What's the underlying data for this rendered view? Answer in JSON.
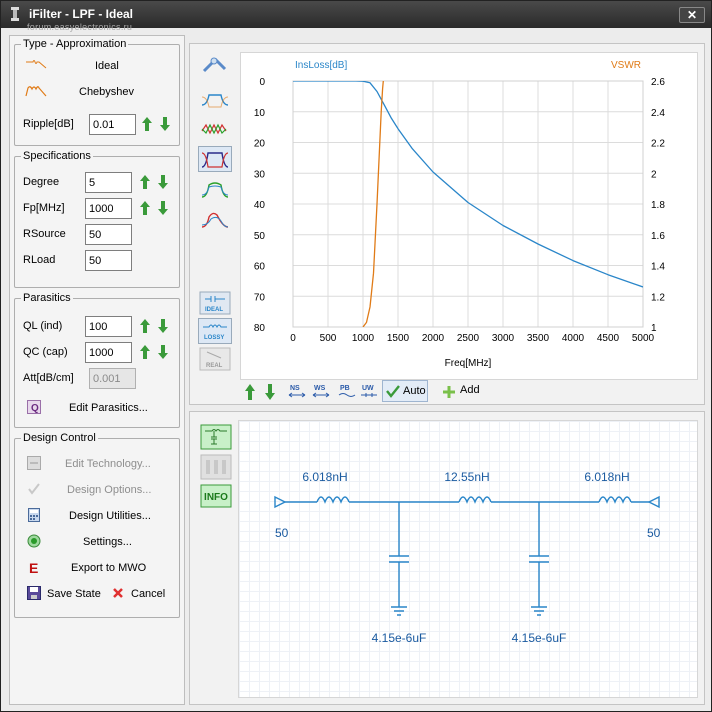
{
  "window": {
    "title": "iFilter - LPF - Ideal",
    "watermark": "forum.easyelectronics.ru",
    "close": "✕"
  },
  "type_approx": {
    "legend": "Type - Approximation",
    "ideal": "Ideal",
    "chebyshev": "Chebyshev",
    "ripple_label": "Ripple[dB]",
    "ripple_value": "0.01"
  },
  "specs": {
    "legend": "Specifications",
    "degree_label": "Degree",
    "degree_value": "5",
    "fp_label": "Fp[MHz]",
    "fp_value": "1000",
    "rsource_label": "RSource",
    "rsource_value": "50",
    "rload_label": "RLoad",
    "rload_value": "50"
  },
  "parasitics": {
    "legend": "Parasitics",
    "ql_label": "QL (ind)",
    "ql_value": "100",
    "qc_label": "QC (cap)",
    "qc_value": "1000",
    "att_label": "Att[dB/cm]",
    "att_value": "0.001",
    "edit_label": "Edit Parasitics..."
  },
  "design": {
    "legend": "Design Control",
    "edit_tech": "Edit Technology...",
    "design_options": "Design Options...",
    "design_utils": "Design Utilities...",
    "settings": "Settings...",
    "export": "Export to MWO",
    "save": "Save State",
    "cancel": "Cancel"
  },
  "colors": {
    "insloss": "#2a86c9",
    "vswr": "#e07b17",
    "up_arrow": "#3a9a3a",
    "export_icon": "#c01010",
    "circuit": "#2a86c9"
  },
  "side_buttons": {
    "ideal": "IDEAL",
    "lossy": "LOSSY",
    "real": "REAL"
  },
  "toolbar": {
    "ns": "NS",
    "ws": "WS",
    "pb": "PB",
    "uw": "UW",
    "auto": "Auto",
    "add": "Add"
  },
  "circuit_buttons": {
    "info": "INFO"
  },
  "chart_data": {
    "type": "line",
    "xlabel": "Freq[MHz]",
    "ylabel_left": "InsLoss[dB]",
    "ylabel_right": "VSWR",
    "xlim": [
      0,
      5000
    ],
    "ylim_left": [
      0,
      80
    ],
    "ylim_right": [
      1,
      2.6
    ],
    "left_axis_inverted": true,
    "x_ticks": [
      0,
      500,
      1000,
      1500,
      2000,
      2500,
      3000,
      3500,
      4000,
      4500,
      5000
    ],
    "y_ticks_left": [
      0,
      10,
      20,
      30,
      40,
      50,
      60,
      70,
      80
    ],
    "y_ticks_right": [
      "2.6",
      "2.4",
      "2.2",
      "2",
      "1.8",
      "1.6",
      "1.4",
      "1.2",
      "1"
    ],
    "grid": true,
    "series": [
      {
        "name": "InsLoss[dB]",
        "axis": "left",
        "x": [
          0,
          500,
          900,
          1000,
          1100,
          1200,
          1300,
          1400,
          1500,
          1700,
          2000,
          2500,
          3000,
          3500,
          4000,
          4500,
          5000
        ],
        "y": [
          0,
          0,
          0,
          0.05,
          0.6,
          3.4,
          7.6,
          11.9,
          15.5,
          21.9,
          29.6,
          39.5,
          47,
          53,
          58.4,
          63,
          67
        ]
      },
      {
        "name": "VSWR",
        "axis": "right",
        "x": [
          1000,
          1050,
          1100,
          1150,
          1200,
          1230,
          1260,
          1280,
          1300
        ],
        "y": [
          1,
          1.03,
          1.13,
          1.35,
          1.8,
          2.1,
          2.4,
          2.55,
          2.65
        ]
      }
    ]
  },
  "circuit": {
    "l1": "6.018nH",
    "l2": "12.55nH",
    "l3": "6.018nH",
    "c1": "4.15e-6uF",
    "c2": "4.15e-6uF",
    "port1": "50",
    "port2": "50"
  }
}
